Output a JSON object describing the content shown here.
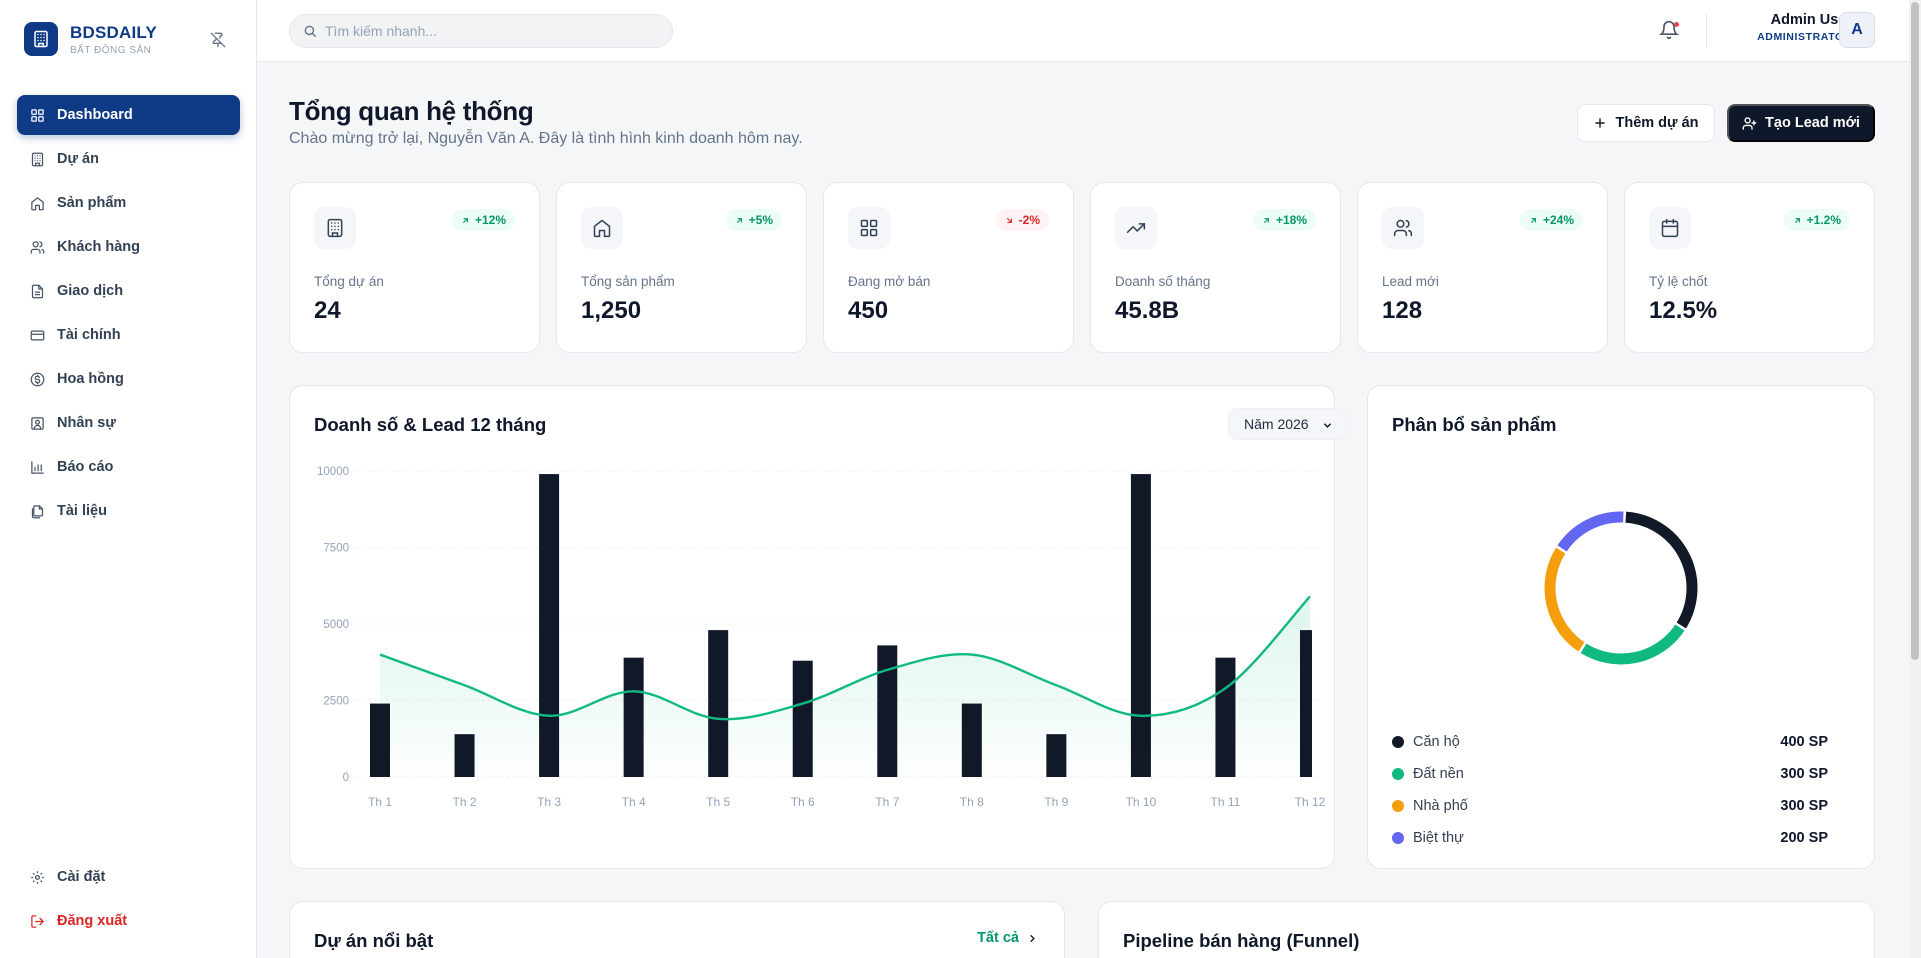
{
  "brand": {
    "name": "BDSDAILY",
    "subtitle": "BẤT ĐỘNG SẢN"
  },
  "sidebar": {
    "items": [
      {
        "label": "Dashboard",
        "icon": "grid-icon",
        "active": true
      },
      {
        "label": "Dự án",
        "icon": "building-icon"
      },
      {
        "label": "Sản phẩm",
        "icon": "home-icon"
      },
      {
        "label": "Khách hàng",
        "icon": "users-icon"
      },
      {
        "label": "Giao dịch",
        "icon": "file-icon"
      },
      {
        "label": "Tài chính",
        "icon": "wallet-icon"
      },
      {
        "label": "Hoa hồng",
        "icon": "dollar-icon"
      },
      {
        "label": "Nhân sự",
        "icon": "id-card-icon"
      },
      {
        "label": "Báo cáo",
        "icon": "bar-chart-icon"
      },
      {
        "label": "Tài liệu",
        "icon": "documents-icon"
      }
    ],
    "settings_label": "Cài đặt",
    "logout_label": "Đăng xuất"
  },
  "search": {
    "placeholder": "Tìm kiếm nhanh..."
  },
  "user": {
    "name": "Admin User",
    "role": "ADMINISTRATOR",
    "initial": "A"
  },
  "page": {
    "title": "Tổng quan hệ thống",
    "subtitle": "Chào mừng trở lại, Nguyễn Văn A. Đây là tình hình kinh doanh hôm nay.",
    "add_project_label": "Thêm dự án",
    "create_lead_label": "Tạo Lead mới"
  },
  "stats": [
    {
      "label": "Tổng dự án",
      "value": "24",
      "change": "+12%",
      "trend": "up",
      "icon": "building-icon"
    },
    {
      "label": "Tổng sản phẩm",
      "value": "1,250",
      "change": "+5%",
      "trend": "up",
      "icon": "home-icon"
    },
    {
      "label": "Đang mở bán",
      "value": "450",
      "change": "-2%",
      "trend": "down",
      "icon": "grid-icon"
    },
    {
      "label": "Doanh số tháng",
      "value": "45.8B",
      "change": "+18%",
      "trend": "up",
      "icon": "trending-up-icon"
    },
    {
      "label": "Lead mới",
      "value": "128",
      "change": "+24%",
      "trend": "up",
      "icon": "users-icon"
    },
    {
      "label": "Tỷ lệ chốt",
      "value": "12.5%",
      "change": "+1.2%",
      "trend": "up",
      "icon": "calendar-icon"
    }
  ],
  "revenue_card": {
    "title": "Doanh số & Lead 12 tháng",
    "year_selected": "Năm 2026"
  },
  "chart_data": [
    {
      "type": "bar",
      "title": "Doanh số & Lead 12 tháng",
      "categories": [
        "Th 1",
        "Th 2",
        "Th 3",
        "Th 4",
        "Th 5",
        "Th 6",
        "Th 7",
        "Th 8",
        "Th 9",
        "Th 10",
        "Th 11",
        "Th 12"
      ],
      "yticks": [
        0,
        2500,
        5000,
        7500,
        10000
      ],
      "ylim": [
        0,
        10000
      ],
      "grid": true,
      "series": [
        {
          "type": "bar",
          "color": "#111827",
          "values": [
            2400,
            1400,
            9900,
            3900,
            4800,
            3800,
            4300,
            2400,
            1400,
            9900,
            3900,
            4800
          ]
        },
        {
          "type": "area",
          "color": "#10b981",
          "values": [
            4000,
            3000,
            2000,
            2800,
            1900,
            2400,
            3500,
            4000,
            3000,
            2000,
            2900,
            5900
          ]
        }
      ]
    },
    {
      "type": "pie",
      "title": "Phân bổ sản phẩm",
      "categories": [
        "Căn hộ",
        "Đất nền",
        "Nhà phố",
        "Biệt thự"
      ],
      "values": [
        400,
        300,
        300,
        200
      ],
      "value_labels": [
        "400 SP",
        "300 SP",
        "300 SP",
        "200 SP"
      ],
      "colors": [
        "#111827",
        "#10b981",
        "#f59e0b",
        "#6366f1"
      ],
      "legend": "bottom"
    }
  ],
  "distribution_card": {
    "title": "Phân bổ sản phẩm"
  },
  "featured_card": {
    "title": "Dự án nổi bật",
    "link_label": "Tất cả"
  },
  "pipeline_card": {
    "title": "Pipeline bán hàng (Funnel)"
  }
}
